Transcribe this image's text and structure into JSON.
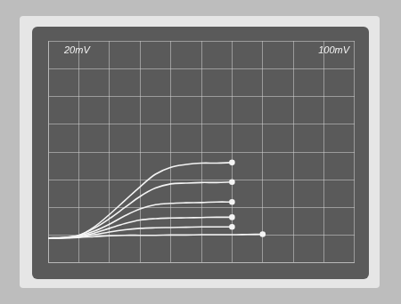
{
  "chart_data": {
    "type": "line",
    "annotations": [
      "20mV",
      "100mV"
    ],
    "x": [
      0,
      0.5,
      1,
      1.5,
      2,
      2.5,
      3,
      3.5,
      4,
      4.5,
      5,
      5.5,
      6,
      6.5,
      7
    ],
    "series": [
      {
        "color": "#f4f4f4",
        "values": [
          0.9,
          0.92,
          1.0,
          1.3,
          1.75,
          2.25,
          2.75,
          3.2,
          3.45,
          3.55,
          3.6,
          3.6,
          3.62,
          null,
          null
        ]
      },
      {
        "color": "#f4f4f4",
        "values": [
          0.9,
          0.92,
          1.0,
          1.25,
          1.6,
          2.0,
          2.4,
          2.7,
          2.85,
          2.88,
          2.9,
          2.9,
          2.92,
          null,
          null
        ]
      },
      {
        "color": "#f4f4f4",
        "values": [
          0.9,
          0.91,
          0.98,
          1.15,
          1.4,
          1.7,
          1.95,
          2.1,
          2.15,
          2.17,
          2.18,
          2.2,
          2.2,
          null,
          null
        ]
      },
      {
        "color": "#f4f4f4",
        "values": [
          0.9,
          0.91,
          0.96,
          1.08,
          1.25,
          1.42,
          1.55,
          1.6,
          1.62,
          1.63,
          1.64,
          1.65,
          1.65,
          null,
          null
        ]
      },
      {
        "color": "#f4f4f4",
        "values": [
          0.9,
          0.9,
          0.94,
          1.02,
          1.12,
          1.2,
          1.25,
          1.27,
          1.28,
          1.29,
          1.3,
          1.3,
          1.3,
          null,
          null
        ]
      },
      {
        "color": "#f4f4f4",
        "values": [
          0.9,
          0.9,
          0.92,
          0.95,
          0.98,
          1.0,
          1.0,
          1.0,
          1.01,
          1.01,
          1.02,
          1.02,
          1.02,
          1.03,
          1.04
        ]
      }
    ],
    "xlim": [
      0,
      10
    ],
    "xticks": [
      0,
      1,
      2,
      3,
      4,
      5,
      6,
      7,
      8,
      9,
      10
    ],
    "ylim": [
      0,
      8
    ],
    "yticks": [
      0,
      1,
      2,
      3,
      4,
      5,
      6,
      7,
      8
    ],
    "grid": true,
    "tick_labels": false
  }
}
